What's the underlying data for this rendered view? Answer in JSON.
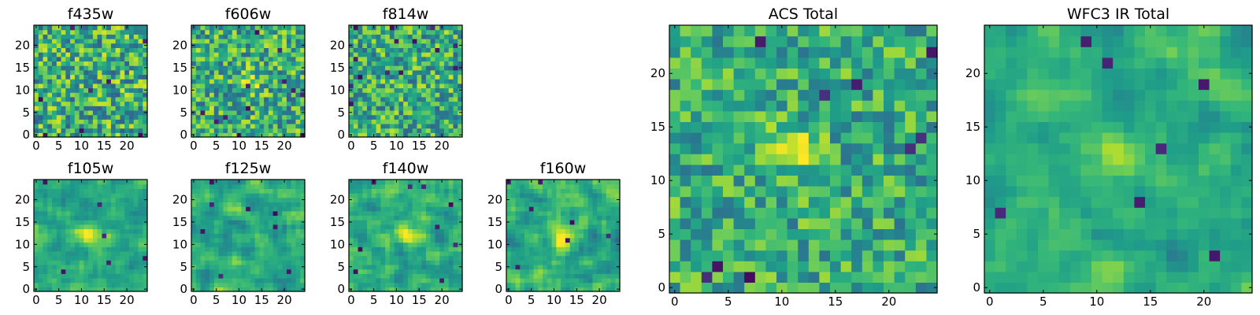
{
  "chart_data": {
    "type": "heatmap",
    "colormap": "viridis",
    "grid": false,
    "panels": [
      {
        "id": "f435w",
        "title": "f435w",
        "xlim": [
          -0.5,
          24.5
        ],
        "ylim": [
          -0.5,
          24.5
        ],
        "xticks": [
          0,
          5,
          10,
          15,
          20
        ],
        "yticks": [
          0,
          5,
          10,
          15,
          20
        ],
        "pattern": "noise",
        "noise": 0.55,
        "dark_pixels": 8
      },
      {
        "id": "f606w",
        "title": "f606w",
        "xlim": [
          -0.5,
          24.5
        ],
        "ylim": [
          -0.5,
          24.5
        ],
        "xticks": [
          0,
          5,
          10,
          15,
          20
        ],
        "yticks": [
          0,
          5,
          10,
          15,
          20
        ],
        "pattern": "noise",
        "noise": 0.5,
        "dark_pixels": 12,
        "source_center": [
          12,
          12
        ]
      },
      {
        "id": "f814w",
        "title": "f814w",
        "xlim": [
          -0.5,
          24.5
        ],
        "ylim": [
          -0.5,
          24.5
        ],
        "xticks": [
          0,
          5,
          10,
          15,
          20
        ],
        "yticks": [
          0,
          5,
          10,
          15,
          20
        ],
        "pattern": "noise",
        "noise": 0.5,
        "dark_pixels": 14
      },
      {
        "id": "f105w",
        "title": "f105w",
        "xlim": [
          -0.5,
          24.5
        ],
        "ylim": [
          -0.5,
          24.5
        ],
        "xticks": [
          0,
          5,
          10,
          15,
          20
        ],
        "yticks": [
          0,
          5,
          10,
          15,
          20
        ],
        "pattern": "smooth",
        "noise": 0.4,
        "dark_pixels": 6,
        "source_center": [
          11,
          12
        ]
      },
      {
        "id": "f125w",
        "title": "f125w",
        "xlim": [
          -0.5,
          24.5
        ],
        "ylim": [
          -0.5,
          24.5
        ],
        "xticks": [
          0,
          5,
          10,
          15,
          20
        ],
        "yticks": [
          0,
          5,
          10,
          15,
          20
        ],
        "pattern": "smooth",
        "noise": 0.45,
        "dark_pixels": 8
      },
      {
        "id": "f140w",
        "title": "f140w",
        "xlim": [
          -0.5,
          24.5
        ],
        "ylim": [
          -0.5,
          24.5
        ],
        "xticks": [
          0,
          5,
          10,
          15,
          20
        ],
        "yticks": [
          0,
          5,
          10,
          15,
          20
        ],
        "pattern": "smooth",
        "noise": 0.45,
        "dark_pixels": 9,
        "source_center": [
          12,
          12
        ]
      },
      {
        "id": "f160w",
        "title": "f160w",
        "xlim": [
          -0.5,
          24.5
        ],
        "ylim": [
          -0.5,
          24.5
        ],
        "xticks": [
          0,
          5,
          10,
          15,
          20
        ],
        "yticks": [
          0,
          5,
          10,
          15,
          20
        ],
        "pattern": "smooth",
        "noise": 0.45,
        "dark_pixels": 7,
        "source_center": [
          12,
          11
        ]
      },
      {
        "id": "acs_total",
        "title": "ACS Total",
        "xlim": [
          -0.5,
          24.5
        ],
        "ylim": [
          -0.5,
          24.5
        ],
        "xticks": [
          0,
          5,
          10,
          15,
          20
        ],
        "yticks": [
          0,
          5,
          10,
          15,
          20
        ],
        "pattern": "noise",
        "noise": 0.4,
        "dark_pixels": 9,
        "source_center": [
          11,
          13
        ]
      },
      {
        "id": "wfc3_total",
        "title": "WFC3 IR Total",
        "xlim": [
          -0.5,
          24.5
        ],
        "ylim": [
          -0.5,
          24.5
        ],
        "xticks": [
          0,
          5,
          10,
          15,
          20
        ],
        "yticks": [
          0,
          5,
          10,
          15,
          20
        ],
        "pattern": "smooth",
        "noise": 0.35,
        "dark_pixels": 7,
        "source_center": [
          12,
          13
        ]
      }
    ]
  }
}
